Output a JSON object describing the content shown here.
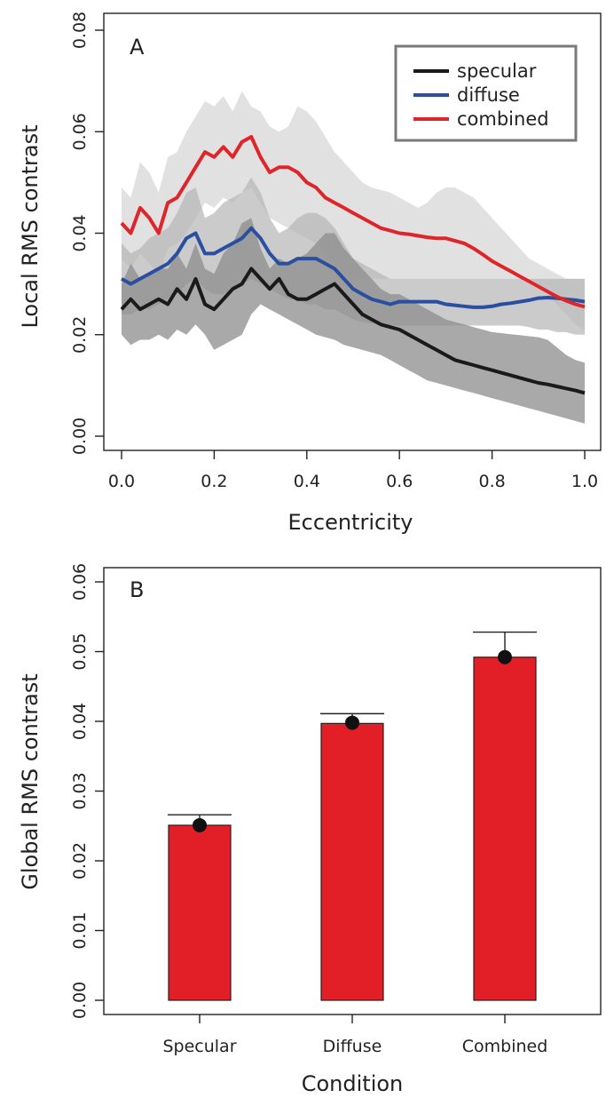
{
  "chart_data": [
    {
      "panel": "A",
      "type": "line",
      "title": "",
      "xlabel": "Eccentricity",
      "ylabel": "Local RMS contrast",
      "xlim": [
        0.0,
        1.0
      ],
      "ylim": [
        0.0,
        0.08
      ],
      "xticks": [
        "0.0",
        "0.2",
        "0.4",
        "0.6",
        "0.8",
        "1.0"
      ],
      "yticks": [
        "0.00",
        "0.02",
        "0.04",
        "0.06",
        "0.08"
      ],
      "legend": {
        "placement": "top-right",
        "entries": [
          "specular",
          "diffuse",
          "combined"
        ]
      },
      "x": [
        0.0,
        0.02,
        0.04,
        0.06,
        0.08,
        0.1,
        0.12,
        0.14,
        0.16,
        0.18,
        0.2,
        0.22,
        0.24,
        0.26,
        0.28,
        0.3,
        0.32,
        0.34,
        0.36,
        0.38,
        0.4,
        0.42,
        0.44,
        0.46,
        0.48,
        0.5,
        0.52,
        0.54,
        0.56,
        0.58,
        0.6,
        0.62,
        0.64,
        0.66,
        0.68,
        0.7,
        0.72,
        0.74,
        0.76,
        0.78,
        0.8,
        0.82,
        0.84,
        0.86,
        0.88,
        0.9,
        0.92,
        0.94,
        0.96,
        0.98,
        1.0
      ],
      "series": [
        {
          "name": "specular",
          "color": "#1a1a1a",
          "band_color": "#8c8c8c",
          "values": [
            0.025,
            0.027,
            0.025,
            0.026,
            0.027,
            0.026,
            0.029,
            0.027,
            0.031,
            0.026,
            0.025,
            0.027,
            0.029,
            0.03,
            0.033,
            0.031,
            0.029,
            0.031,
            0.028,
            0.027,
            0.027,
            0.028,
            0.029,
            0.03,
            0.028,
            0.026,
            0.024,
            0.023,
            0.022,
            0.0215,
            0.021,
            0.02,
            0.019,
            0.018,
            0.017,
            0.016,
            0.015,
            0.0145,
            0.014,
            0.0135,
            0.013,
            0.0125,
            0.012,
            0.0115,
            0.011,
            0.0105,
            0.0102,
            0.0098,
            0.0094,
            0.009,
            0.0085
          ],
          "lower": [
            0.02,
            0.018,
            0.019,
            0.019,
            0.02,
            0.019,
            0.021,
            0.02,
            0.022,
            0.02,
            0.017,
            0.018,
            0.019,
            0.02,
            0.024,
            0.026,
            0.025,
            0.024,
            0.023,
            0.022,
            0.021,
            0.02,
            0.0195,
            0.019,
            0.018,
            0.0175,
            0.017,
            0.0165,
            0.016,
            0.015,
            0.014,
            0.013,
            0.012,
            0.011,
            0.0105,
            0.01,
            0.0095,
            0.009,
            0.0085,
            0.008,
            0.0075,
            0.007,
            0.0065,
            0.006,
            0.0055,
            0.005,
            0.0045,
            0.004,
            0.0035,
            0.003,
            0.0025
          ],
          "upper": [
            0.03,
            0.034,
            0.031,
            0.032,
            0.033,
            0.033,
            0.036,
            0.033,
            0.038,
            0.033,
            0.032,
            0.036,
            0.038,
            0.042,
            0.043,
            0.037,
            0.033,
            0.035,
            0.034,
            0.035,
            0.036,
            0.038,
            0.04,
            0.04,
            0.037,
            0.035,
            0.033,
            0.031,
            0.029,
            0.028,
            0.028,
            0.027,
            0.026,
            0.025,
            0.024,
            0.023,
            0.0225,
            0.022,
            0.0215,
            0.021,
            0.0205,
            0.0203,
            0.0201,
            0.0199,
            0.0197,
            0.0195,
            0.019,
            0.0175,
            0.016,
            0.015,
            0.0145
          ]
        },
        {
          "name": "diffuse",
          "color": "#2a4fa0",
          "band_color": "#b5b5b5",
          "values": [
            0.031,
            0.03,
            0.031,
            0.032,
            0.033,
            0.034,
            0.036,
            0.039,
            0.04,
            0.036,
            0.036,
            0.037,
            0.038,
            0.039,
            0.041,
            0.039,
            0.036,
            0.034,
            0.034,
            0.035,
            0.035,
            0.035,
            0.034,
            0.033,
            0.031,
            0.029,
            0.028,
            0.027,
            0.0265,
            0.026,
            0.0265,
            0.0265,
            0.0265,
            0.0265,
            0.0265,
            0.026,
            0.0258,
            0.0256,
            0.0254,
            0.0254,
            0.0256,
            0.026,
            0.0262,
            0.0265,
            0.0268,
            0.0272,
            0.0273,
            0.0272,
            0.027,
            0.0268,
            0.0265
          ],
          "lower": [
            0.024,
            0.024,
            0.025,
            0.025,
            0.026,
            0.027,
            0.028,
            0.03,
            0.031,
            0.029,
            0.028,
            0.028,
            0.029,
            0.03,
            0.031,
            0.03,
            0.029,
            0.028,
            0.027,
            0.027,
            0.026,
            0.026,
            0.025,
            0.025,
            0.024,
            0.023,
            0.0225,
            0.0222,
            0.022,
            0.0218,
            0.0218,
            0.0218,
            0.0218,
            0.0218,
            0.0218,
            0.0218,
            0.0218,
            0.0218,
            0.0218,
            0.0218,
            0.0218,
            0.0218,
            0.0218,
            0.0218,
            0.0215,
            0.021,
            0.021,
            0.0205,
            0.0205,
            0.02,
            0.02
          ],
          "upper": [
            0.038,
            0.036,
            0.037,
            0.039,
            0.04,
            0.041,
            0.044,
            0.048,
            0.049,
            0.043,
            0.044,
            0.046,
            0.047,
            0.048,
            0.051,
            0.048,
            0.043,
            0.04,
            0.041,
            0.043,
            0.044,
            0.044,
            0.043,
            0.041,
            0.038,
            0.035,
            0.034,
            0.033,
            0.032,
            0.031,
            0.031,
            0.031,
            0.031,
            0.031,
            0.031,
            0.031,
            0.031,
            0.031,
            0.031,
            0.031,
            0.031,
            0.031,
            0.031,
            0.031,
            0.031,
            0.031,
            0.031,
            0.031,
            0.031,
            0.031,
            0.031
          ]
        },
        {
          "name": "combined",
          "color": "#e0252a",
          "band_color": "#c8c8c8",
          "values": [
            0.042,
            0.04,
            0.045,
            0.043,
            0.04,
            0.046,
            0.047,
            0.05,
            0.053,
            0.056,
            0.055,
            0.057,
            0.055,
            0.058,
            0.059,
            0.055,
            0.052,
            0.053,
            0.053,
            0.052,
            0.05,
            0.049,
            0.047,
            0.046,
            0.045,
            0.044,
            0.043,
            0.042,
            0.041,
            0.0405,
            0.04,
            0.0398,
            0.0395,
            0.0392,
            0.039,
            0.039,
            0.0385,
            0.038,
            0.037,
            0.0358,
            0.0345,
            0.0335,
            0.0325,
            0.0315,
            0.0305,
            0.0295,
            0.0285,
            0.0275,
            0.0267,
            0.026,
            0.0255
          ],
          "lower": [
            0.035,
            0.033,
            0.036,
            0.034,
            0.032,
            0.037,
            0.038,
            0.04,
            0.043,
            0.046,
            0.045,
            0.047,
            0.046,
            0.048,
            0.049,
            0.046,
            0.043,
            0.042,
            0.041,
            0.04,
            0.039,
            0.038,
            0.036,
            0.034,
            0.032,
            0.031,
            0.031,
            0.031,
            0.031,
            0.031,
            0.031,
            0.031,
            0.031,
            0.031,
            0.031,
            0.031,
            0.031,
            0.031,
            0.031,
            0.031,
            0.031,
            0.031,
            0.031,
            0.031,
            0.031,
            0.03,
            0.028,
            0.026,
            0.024,
            0.022,
            0.021
          ],
          "upper": [
            0.049,
            0.047,
            0.054,
            0.052,
            0.048,
            0.055,
            0.056,
            0.06,
            0.063,
            0.066,
            0.065,
            0.067,
            0.064,
            0.068,
            0.065,
            0.064,
            0.061,
            0.06,
            0.061,
            0.065,
            0.064,
            0.062,
            0.059,
            0.056,
            0.054,
            0.052,
            0.05,
            0.049,
            0.0485,
            0.048,
            0.047,
            0.046,
            0.045,
            0.046,
            0.048,
            0.049,
            0.049,
            0.048,
            0.047,
            0.045,
            0.043,
            0.041,
            0.039,
            0.037,
            0.035,
            0.034,
            0.033,
            0.032,
            0.031,
            0.031,
            0.031
          ]
        }
      ]
    },
    {
      "panel": "B",
      "type": "bar",
      "title": "",
      "xlabel": "Condition",
      "ylabel": "Global RMS contrast",
      "ylim": [
        0.0,
        0.06
      ],
      "yticks": [
        "0.00",
        "0.01",
        "0.02",
        "0.03",
        "0.04",
        "0.05",
        "0.06"
      ],
      "categories": [
        "Specular",
        "Diffuse",
        "Combined"
      ],
      "values": [
        0.0251,
        0.0397,
        0.0492
      ],
      "error_upper": [
        0.0266,
        0.0411,
        0.0528
      ],
      "points": [
        0.0251,
        0.0398,
        0.0492
      ],
      "bar_color": "#e21f26"
    }
  ]
}
